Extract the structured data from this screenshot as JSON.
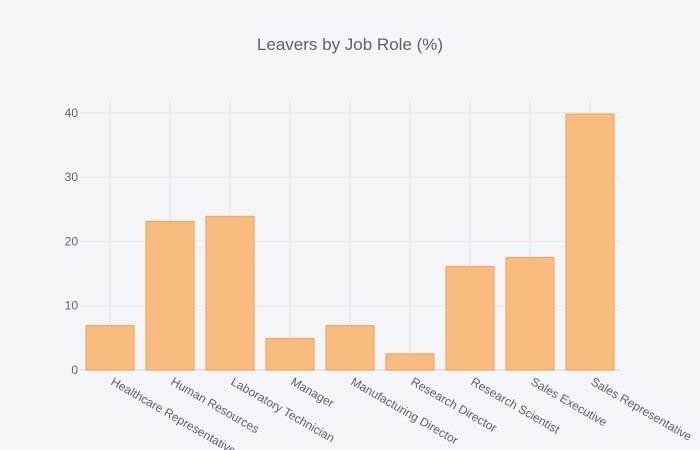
{
  "chart_data": {
    "type": "bar",
    "title": "Leavers by Job Role (%)",
    "xlabel": "",
    "ylabel": "",
    "categories": [
      "Healthcare Representative",
      "Human Resources",
      "Laboratory Technician",
      "Manager",
      "Manufacturing Director",
      "Research Director",
      "Research Scientist",
      "Sales Executive",
      "Sales Representative"
    ],
    "values": [
      6.9,
      23.1,
      23.9,
      4.9,
      6.9,
      2.5,
      16.1,
      17.5,
      39.8
    ],
    "ylim": [
      0,
      42
    ],
    "yticks": [
      0,
      10,
      20,
      30,
      40
    ],
    "grid": true,
    "legend": "none",
    "bar_fill": "#f9bc7f",
    "bar_stroke": "#f6a75c",
    "background": "#f4f5f8"
  }
}
